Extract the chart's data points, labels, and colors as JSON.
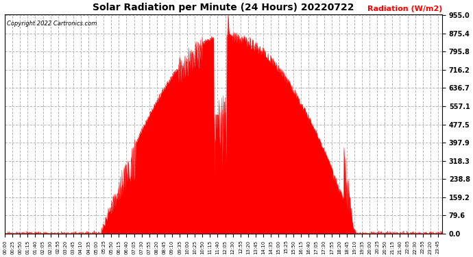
{
  "title": "Solar Radiation per Minute (24 Hours) 20220722",
  "ylabel": "Radiation (W/m2)",
  "copyright": "Copyright 2022 Cartronics.com",
  "yticks": [
    0.0,
    79.6,
    159.2,
    238.8,
    318.3,
    397.9,
    477.5,
    557.1,
    636.7,
    716.2,
    795.8,
    875.4,
    955.0
  ],
  "ymin": 0.0,
  "ymax": 955.0,
  "fill_color": "#ff0000",
  "line_color": "#ff0000",
  "background_color": "#ffffff",
  "grid_color": "#b0b0b0",
  "title_color": "#000000",
  "ylabel_color": "#ff0000",
  "copyright_color": "#000000",
  "zero_line_color": "#ff0000",
  "tick_interval_minutes": 25,
  "sunrise_minute": 315,
  "sunset_minute": 1155,
  "peak_value": 870.0,
  "spike_value": 955.0,
  "spike_minute": 735
}
